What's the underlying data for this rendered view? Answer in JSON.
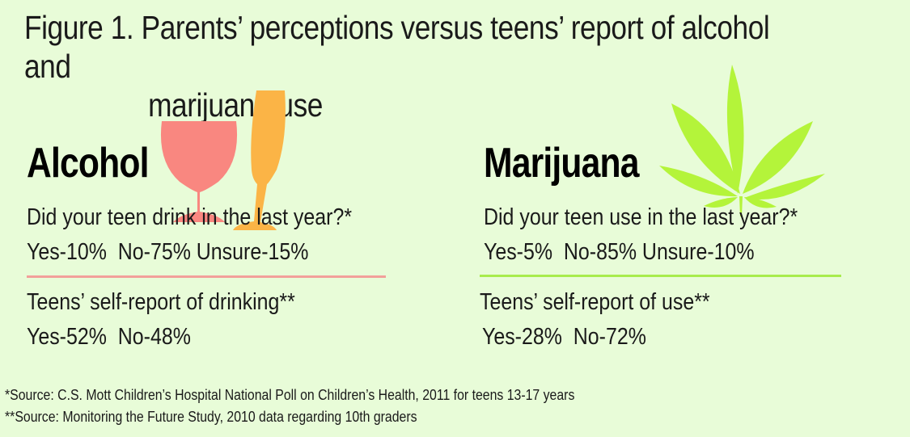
{
  "title": {
    "line1": "Figure 1. Parents’ perceptions versus teens’ report of alcohol and",
    "line2": "marijuana use"
  },
  "alcohol": {
    "heading": "Alcohol",
    "parent_question": "Did your teen drink in the last year?*",
    "parent_answers": "Yes-10%  No-75% Unsure-15%",
    "teen_label": "Teens’ self-report of drinking**",
    "teen_answers": "Yes-52%  No-48%",
    "divider_color": "#f2a09a",
    "glass_color": "#f98780",
    "bottle_color": "#fbb446"
  },
  "marijuana": {
    "heading": "Marijuana",
    "parent_question": "Did your teen use in the last year?*",
    "parent_answers": "Yes-5%  No-85% Unsure-10%",
    "teen_label": "Teens’ self-report of use**",
    "teen_answers": "Yes-28%  No-72%",
    "divider_color": "#a8ec4c",
    "leaf_color": "#b4f43a"
  },
  "sources": {
    "source1": "*Source: C.S. Mott Children’s Hospital National Poll on Children’s Health, 2011 for teens 13-17 years",
    "source2": "**Source: Monitoring the Future Study, 2010 data regarding 10th graders"
  }
}
